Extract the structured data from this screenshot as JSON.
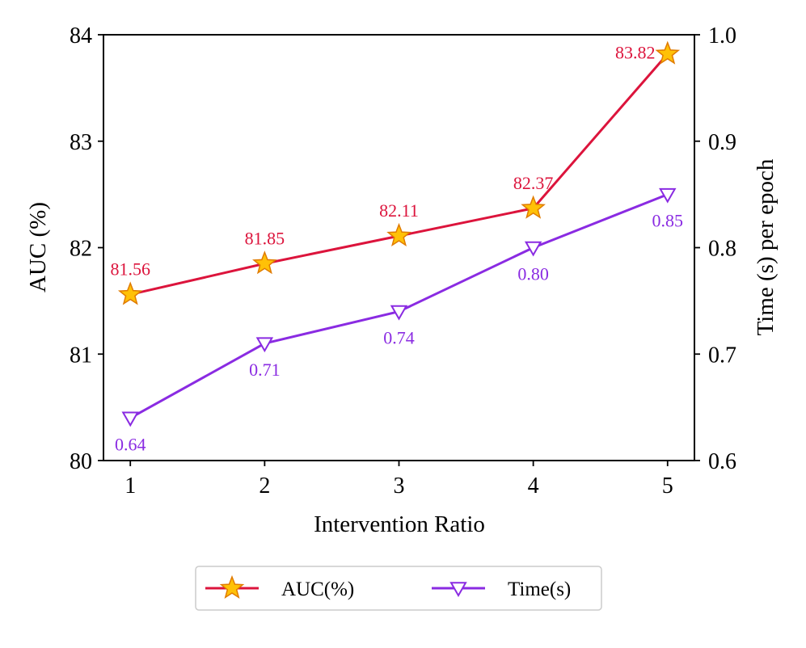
{
  "chart_data": {
    "type": "line",
    "categories": [
      "1",
      "2",
      "3",
      "4",
      "5"
    ],
    "x": [
      1,
      2,
      3,
      4,
      5
    ],
    "xlabel": "Intervention Ratio",
    "ylabel": "AUC (%)",
    "y2label": "Time (s) per epoch",
    "ylim": [
      80,
      84
    ],
    "y2lim": [
      0.6,
      1.0
    ],
    "yticks": [
      "80",
      "81",
      "82",
      "83",
      "84"
    ],
    "y2ticks": [
      "0.6",
      "0.7",
      "0.8",
      "0.9",
      "1.0"
    ],
    "grid": false,
    "legend_position": "bottom-center",
    "series": [
      {
        "name": "AUC(%)",
        "axis": "left",
        "color": "#dc143c",
        "marker": "star",
        "marker_fill": "#ffc107",
        "values": [
          81.56,
          81.85,
          82.11,
          82.37,
          83.82
        ],
        "labels": [
          "81.56",
          "81.85",
          "82.11",
          "82.37",
          "83.82"
        ]
      },
      {
        "name": "Time(s)",
        "axis": "right",
        "color": "#8a2be2",
        "marker": "triangle-down",
        "marker_fill": "#ffffff",
        "values": [
          0.64,
          0.71,
          0.74,
          0.8,
          0.85
        ],
        "labels": [
          "0.64",
          "0.71",
          "0.74",
          "0.80",
          "0.85"
        ]
      }
    ]
  }
}
